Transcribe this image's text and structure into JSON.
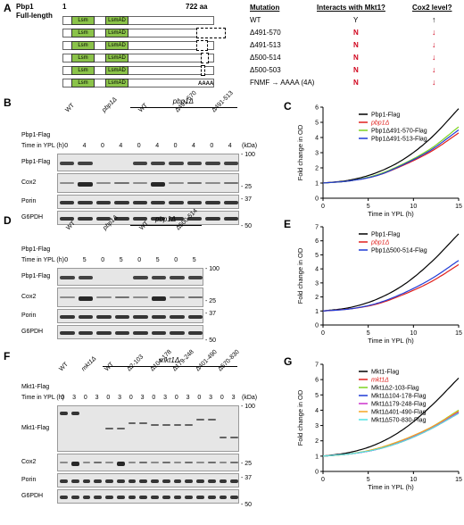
{
  "panelA": {
    "letter": "A",
    "protein": "Pbp1",
    "subtitle": "Full-length",
    "start": "1",
    "end": "722 aa",
    "domain1": "Lsm",
    "domain2": "LsmAD",
    "headers": [
      "Mutation",
      "Interacts with Mkt1?",
      "Cox2 level?"
    ],
    "rows": [
      {
        "mutation": "WT",
        "interacts": "Y",
        "cox2": "↑"
      },
      {
        "mutation": "Δ491-570",
        "interacts": "N",
        "cox2": "↓"
      },
      {
        "mutation": "Δ491-513",
        "interacts": "N",
        "cox2": "↓"
      },
      {
        "mutation": "Δ500-514",
        "interacts": "N",
        "cox2": "↓"
      },
      {
        "mutation": "Δ500-503",
        "interacts": "N",
        "cox2": "↓"
      },
      {
        "mutation": "FNMF → AAAA (4A)",
        "interacts": "N",
        "cox2": "↓"
      }
    ],
    "aaaa": "AAAA"
  },
  "panelB": {
    "letter": "B",
    "strain_bar": "pbp1Δ",
    "row1_label": "Pbp1-Flag",
    "row2_label": "Time in YPL (h)",
    "lanes": [
      "WT",
      "pbp1Δ",
      "WT",
      "Δ491-570",
      "Δ491-513"
    ],
    "times": [
      "0",
      "4",
      "0",
      "4",
      "0",
      "4",
      "0",
      "4",
      "0",
      "4"
    ],
    "kda": "(kDa)",
    "blots": [
      {
        "name": "Pbp1-Flag",
        "marker": "- 100"
      },
      {
        "name": "Cox2",
        "marker": "- 25"
      },
      {
        "name": "Porin",
        "marker": "- 37"
      },
      {
        "name": "G6PDH",
        "marker": "- 50"
      }
    ]
  },
  "panelD": {
    "letter": "D",
    "strain_bar": "pbp1Δ",
    "row1_label": "Pbp1-Flag",
    "row2_label": "Time in YPL (h)",
    "lanes": [
      "WT",
      "pbp1Δ",
      "WT",
      "Δ500-514"
    ],
    "times": [
      "0",
      "5",
      "0",
      "5",
      "0",
      "5",
      "0",
      "5"
    ],
    "blots": [
      {
        "name": "Pbp1-Flag",
        "marker": "- 100"
      },
      {
        "name": "Cox2",
        "marker": "- 25"
      },
      {
        "name": "Porin",
        "marker": "- 37"
      },
      {
        "name": "G6PDH",
        "marker": "- 50"
      }
    ]
  },
  "panelF": {
    "letter": "F",
    "strain_bar": "mkt1Δ",
    "row1_label": "Mkt1-Flag",
    "row2_label": "Time in YPL (h)",
    "lanes": [
      "WT",
      "mkt1Δ",
      "WT",
      "Δ2-103",
      "Δ104-178",
      "Δ179-248",
      "Δ401-490",
      "Δ570-830"
    ],
    "times": [
      "0",
      "3",
      "0",
      "3",
      "0",
      "3",
      "0",
      "3",
      "0",
      "3",
      "0",
      "3",
      "0",
      "3",
      "0",
      "3"
    ],
    "kda": "(kDa)",
    "blots": [
      {
        "name": "Mkt1-Flag",
        "marker": "- 100"
      },
      {
        "name": "Cox2",
        "marker": "- 25"
      },
      {
        "name": "Porin",
        "marker": "- 37"
      },
      {
        "name": "G6PDH",
        "marker": "- 50"
      }
    ]
  },
  "chart_data": [
    {
      "panel": "C",
      "type": "line",
      "xlabel": "Time in YPL (h)",
      "ylabel": "Fold change in OD",
      "xlim": [
        0,
        15
      ],
      "ylim": [
        0,
        6
      ],
      "xticks": [
        0,
        5,
        10,
        15
      ],
      "yticks": [
        0,
        1,
        2,
        3,
        4,
        5,
        6
      ],
      "legend": "top-left inside",
      "series": [
        {
          "name": "Pbp1-Flag",
          "color": "#000000",
          "x": [
            0,
            3,
            6,
            9,
            12,
            15
          ],
          "y": [
            1,
            1.2,
            1.7,
            2.6,
            4.0,
            5.9
          ]
        },
        {
          "name": "pbp1Δ",
          "color": "#e0211d",
          "x": [
            0,
            3,
            6,
            9,
            12,
            15
          ],
          "y": [
            1,
            1.15,
            1.5,
            2.2,
            3.1,
            4.3
          ]
        },
        {
          "name": "Pbp1Δ491-570-Flag",
          "color": "#7ed321",
          "x": [
            0,
            3,
            6,
            9,
            12,
            15
          ],
          "y": [
            1,
            1.15,
            1.55,
            2.3,
            3.3,
            4.7
          ]
        },
        {
          "name": "Pbp1Δ491-513-Flag",
          "color": "#1f3bd6",
          "x": [
            0,
            3,
            6,
            9,
            12,
            15
          ],
          "y": [
            1,
            1.15,
            1.5,
            2.25,
            3.2,
            4.5
          ]
        }
      ]
    },
    {
      "panel": "E",
      "type": "line",
      "xlabel": "Time in YPL (h)",
      "ylabel": "Fold change in OD",
      "xlim": [
        0,
        15
      ],
      "ylim": [
        0,
        7
      ],
      "xticks": [
        0,
        5,
        10,
        15
      ],
      "yticks": [
        0,
        1,
        2,
        3,
        4,
        5,
        6,
        7
      ],
      "legend": "top-left inside",
      "series": [
        {
          "name": "Pbp1-Flag",
          "color": "#000000",
          "x": [
            0,
            3,
            6,
            9,
            12,
            15
          ],
          "y": [
            1,
            1.25,
            1.85,
            2.9,
            4.5,
            6.5
          ]
        },
        {
          "name": "pbp1Δ",
          "color": "#e0211d",
          "x": [
            0,
            3,
            6,
            9,
            12,
            15
          ],
          "y": [
            1,
            1.15,
            1.5,
            2.2,
            3.1,
            4.3
          ]
        },
        {
          "name": "Pbp1Δ500-514-Flag",
          "color": "#1f3bd6",
          "x": [
            0,
            3,
            6,
            9,
            12,
            15
          ],
          "y": [
            1,
            1.15,
            1.55,
            2.3,
            3.3,
            4.6
          ]
        }
      ]
    },
    {
      "panel": "G",
      "type": "line",
      "xlabel": "Time in YPL (h)",
      "ylabel": "Fold change in OD",
      "xlim": [
        0,
        15
      ],
      "ylim": [
        0,
        7
      ],
      "xticks": [
        0,
        5,
        10,
        15
      ],
      "yticks": [
        0,
        1,
        2,
        3,
        4,
        5,
        6,
        7
      ],
      "legend": "top-left inside",
      "series": [
        {
          "name": "Mkt1-Flag",
          "color": "#000000",
          "x": [
            0,
            3,
            6,
            9,
            12,
            15
          ],
          "y": [
            1,
            1.25,
            1.8,
            2.8,
            4.3,
            6.1
          ]
        },
        {
          "name": "mkt1Δ",
          "color": "#e0211d",
          "x": [
            0,
            3,
            6,
            9,
            12,
            15
          ],
          "y": [
            1,
            1.15,
            1.45,
            2.0,
            2.8,
            3.8
          ]
        },
        {
          "name": "Mkt1Δ2-103-Flag",
          "color": "#7ed321",
          "x": [
            0,
            3,
            6,
            9,
            12,
            15
          ],
          "y": [
            1,
            1.15,
            1.5,
            2.1,
            2.9,
            4.0
          ]
        },
        {
          "name": "Mkt1Δ104-178-Flag",
          "color": "#1f3bd6",
          "x": [
            0,
            3,
            6,
            9,
            12,
            15
          ],
          "y": [
            1,
            1.15,
            1.45,
            2.05,
            2.85,
            3.9
          ]
        },
        {
          "name": "Mkt1Δ179-248-Flag",
          "color": "#cc33cc",
          "x": [
            0,
            3,
            6,
            9,
            12,
            15
          ],
          "y": [
            1,
            1.15,
            1.45,
            2.05,
            2.85,
            3.85
          ]
        },
        {
          "name": "Mkt1Δ401-490-Flag",
          "color": "#f5a623",
          "x": [
            0,
            3,
            6,
            9,
            12,
            15
          ],
          "y": [
            1,
            1.15,
            1.5,
            2.1,
            2.9,
            3.95
          ]
        },
        {
          "name": "Mkt1Δ570-830-Flag",
          "color": "#50e3e3",
          "x": [
            0,
            3,
            6,
            9,
            12,
            15
          ],
          "y": [
            1,
            1.15,
            1.45,
            2.0,
            2.8,
            3.8
          ]
        }
      ]
    }
  ]
}
